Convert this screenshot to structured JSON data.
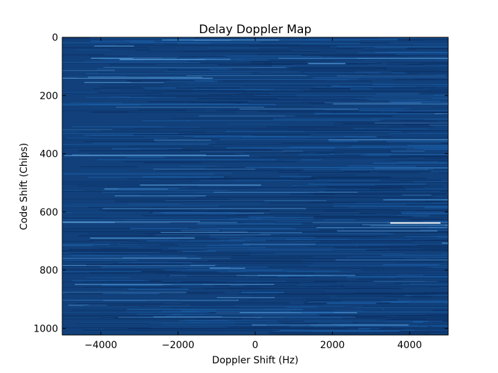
{
  "chart_data": {
    "type": "heatmap",
    "title": "Delay Doppler Map",
    "xlabel": "Doppler Shift (Hz)",
    "ylabel": "Code Shift (Chips)",
    "xlim": [
      -5000,
      5000
    ],
    "ylim": [
      1023,
      0
    ],
    "y_inverted": true,
    "x_ticks": [
      -4000,
      -2000,
      0,
      2000,
      4000
    ],
    "x_tick_labels": [
      "−4000",
      "−2000",
      "0",
      "2000",
      "4000"
    ],
    "y_ticks": [
      0,
      200,
      400,
      600,
      800,
      1000
    ],
    "y_tick_labels": [
      "0",
      "200",
      "400",
      "600",
      "800",
      "1000"
    ],
    "colormap": {
      "background": "#11407a",
      "low": "#0b2f64",
      "mid": "#1b5fa8",
      "high": "#5aa2e0",
      "peak": "#ffffff"
    },
    "grid": false,
    "legend": "none",
    "peak": {
      "doppler_start_hz": 3500,
      "doppler_end_hz": 4800,
      "code_shift_chips": 638,
      "description_visible": false
    }
  }
}
